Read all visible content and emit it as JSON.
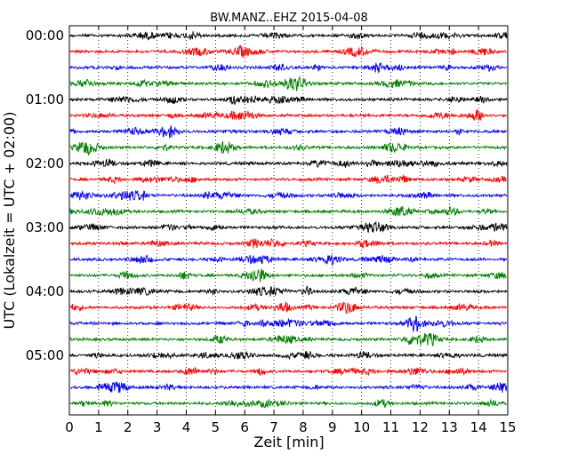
{
  "chart_data": {
    "type": "line",
    "subtype": "seismogram-dayplot",
    "title": "BW.MANZ..EHZ 2015-04-08",
    "xlabel": "Zeit  [min]",
    "ylabel": "UTC (Lokalzeit = UTC + 02:00)",
    "xlim": [
      0,
      15
    ],
    "x_ticks": [
      "0",
      "1",
      "2",
      "3",
      "4",
      "5",
      "6",
      "7",
      "8",
      "9",
      "10",
      "11",
      "12",
      "13",
      "14",
      "15"
    ],
    "y_ticks": [
      "00:00",
      "01:00",
      "02:00",
      "03:00",
      "04:00",
      "05:00"
    ],
    "minutes_per_trace": 15,
    "trace_count": 24,
    "trace_colors": [
      "#000000",
      "#ff0000",
      "#0000ff",
      "#007f00"
    ],
    "vertical_grid": "dotted",
    "series": [
      {
        "start": "00:00",
        "color": "#000000"
      },
      {
        "start": "00:15",
        "color": "#ff0000"
      },
      {
        "start": "00:30",
        "color": "#0000ff"
      },
      {
        "start": "00:45",
        "color": "#007f00"
      },
      {
        "start": "01:00",
        "color": "#000000"
      },
      {
        "start": "01:15",
        "color": "#ff0000"
      },
      {
        "start": "01:30",
        "color": "#0000ff"
      },
      {
        "start": "01:45",
        "color": "#007f00"
      },
      {
        "start": "02:00",
        "color": "#000000"
      },
      {
        "start": "02:15",
        "color": "#ff0000"
      },
      {
        "start": "02:30",
        "color": "#0000ff"
      },
      {
        "start": "02:45",
        "color": "#007f00"
      },
      {
        "start": "03:00",
        "color": "#000000"
      },
      {
        "start": "03:15",
        "color": "#ff0000"
      },
      {
        "start": "03:30",
        "color": "#0000ff"
      },
      {
        "start": "03:45",
        "color": "#007f00"
      },
      {
        "start": "04:00",
        "color": "#000000"
      },
      {
        "start": "04:15",
        "color": "#ff0000"
      },
      {
        "start": "04:30",
        "color": "#0000ff"
      },
      {
        "start": "04:45",
        "color": "#007f00"
      },
      {
        "start": "05:00",
        "color": "#000000"
      },
      {
        "start": "05:15",
        "color": "#ff0000"
      },
      {
        "start": "05:30",
        "color": "#0000ff"
      },
      {
        "start": "05:45",
        "color": "#007f00"
      }
    ]
  }
}
